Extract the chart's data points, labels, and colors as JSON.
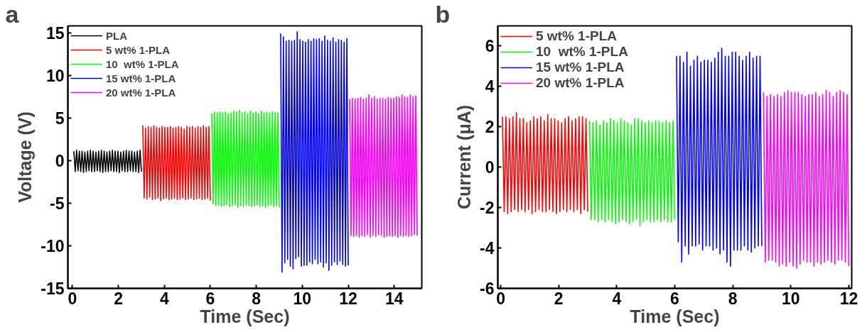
{
  "chart_data": [
    {
      "type": "line",
      "xlabel": "Time (Sec)",
      "ylabel": "Voltage (V)",
      "annotations": [
        "a"
      ],
      "xlim": [
        -0.2,
        15.2
      ],
      "xticks": [
        0,
        2,
        4,
        6,
        8,
        10,
        12,
        14
      ],
      "ylim": [
        -15,
        15.8
      ],
      "yticks": [
        -15,
        -10,
        -5,
        0,
        5,
        10,
        15
      ],
      "legend": "top left",
      "grid": false,
      "marker": "none",
      "line_style": "solid",
      "series": [
        {
          "name": "PLA",
          "color": "#000000",
          "x": [
            0.06,
            0.12,
            0.18,
            0.24,
            0.3,
            0.36,
            0.42,
            0.48,
            0.54,
            0.6,
            0.66,
            0.72,
            0.78,
            0.84,
            0.9,
            0.96,
            1.02,
            1.08,
            1.14,
            1.2,
            1.26,
            1.32,
            1.38,
            1.44,
            1.5,
            1.56,
            1.62,
            1.68,
            1.74,
            1.8,
            1.86,
            1.92,
            1.98,
            2.04,
            2.1,
            2.16,
            2.22,
            2.28,
            2.34,
            2.4,
            2.46,
            2.52,
            2.58,
            2.64,
            2.7,
            2.76,
            2.82,
            2.88,
            2.94,
            3.0
          ],
          "values": [
            1.1,
            -1.3,
            1.2,
            -1.2,
            1.1,
            -1.3,
            1.1,
            -1.4,
            1.0,
            -1.3,
            1.1,
            -1.2,
            1.2,
            -1.3,
            1.1,
            -1.3,
            1.0,
            -1.2,
            1.1,
            -1.3,
            1.2,
            -1.4,
            1.1,
            -1.3,
            1.0,
            -1.3,
            1.1,
            -1.2,
            1.2,
            -1.3,
            1.1,
            -1.3,
            1.1,
            -1.4,
            1.0,
            -1.2,
            1.1,
            -1.3,
            1.2,
            -1.3,
            1.1,
            -1.2,
            1.1,
            -1.3,
            1.0,
            -1.3,
            1.1,
            -1.4,
            1.2,
            -1.3
          ]
        },
        {
          "name": "5 wt% 1-PLA",
          "color": "#ff0000",
          "x": [
            3.06,
            3.12,
            3.18,
            3.24,
            3.3,
            3.36,
            3.42,
            3.48,
            3.54,
            3.6,
            3.66,
            3.72,
            3.78,
            3.84,
            3.9,
            3.96,
            4.02,
            4.08,
            4.14,
            4.2,
            4.26,
            4.32,
            4.38,
            4.44,
            4.5,
            4.56,
            4.62,
            4.68,
            4.74,
            4.8,
            4.86,
            4.92,
            4.98,
            5.04,
            5.1,
            5.16,
            5.22,
            5.28,
            5.34,
            5.4,
            5.46,
            5.52,
            5.58,
            5.64,
            5.7,
            5.76,
            5.82,
            5.88,
            5.94,
            6.0
          ],
          "values": [
            4.1,
            -4.4,
            3.8,
            -4.5,
            4.0,
            -4.3,
            3.9,
            -4.6,
            4.1,
            -4.5,
            3.9,
            -4.4,
            3.8,
            -4.7,
            4.0,
            -4.5,
            3.9,
            -4.4,
            3.9,
            -4.6,
            4.0,
            -4.5,
            3.8,
            -4.4,
            3.9,
            -4.6,
            4.0,
            -4.5,
            3.9,
            -4.4,
            3.7,
            -4.6,
            4.0,
            -4.5,
            3.9,
            -4.4,
            4.0,
            -4.6,
            3.8,
            -4.5,
            4.0,
            -4.4,
            3.9,
            -4.6,
            4.1,
            -4.5,
            3.9,
            -4.4,
            4.0,
            -4.7
          ]
        },
        {
          "name": "10  wt% 1-PLA",
          "color": "#00ff00",
          "x": [
            6.06,
            6.12,
            6.18,
            6.24,
            6.3,
            6.36,
            6.42,
            6.48,
            6.54,
            6.6,
            6.66,
            6.72,
            6.78,
            6.84,
            6.9,
            6.96,
            7.02,
            7.08,
            7.14,
            7.2,
            7.26,
            7.32,
            7.38,
            7.44,
            7.5,
            7.56,
            7.62,
            7.68,
            7.74,
            7.8,
            7.86,
            7.92,
            7.98,
            8.04,
            8.1,
            8.16,
            8.22,
            8.28,
            8.34,
            8.4,
            8.46,
            8.52,
            8.58,
            8.64,
            8.7,
            8.76,
            8.82,
            8.88,
            8.94,
            9.0
          ],
          "values": [
            5.5,
            -5.1,
            5.7,
            -5.3,
            5.6,
            -5.2,
            5.7,
            -5.4,
            5.6,
            -5.3,
            5.7,
            -5.2,
            5.5,
            -5.4,
            5.6,
            -5.3,
            5.8,
            -5.2,
            5.7,
            -5.5,
            5.9,
            -5.3,
            5.6,
            -5.4,
            5.7,
            -5.2,
            5.5,
            -5.3,
            5.8,
            -5.4,
            5.6,
            -5.3,
            5.7,
            -5.2,
            5.5,
            -5.4,
            5.8,
            -5.3,
            5.6,
            -5.5,
            5.7,
            -5.3,
            5.6,
            -5.2,
            5.7,
            -5.4,
            5.6,
            -5.3,
            5.6,
            -5.5
          ]
        },
        {
          "name": "15 wt% 1-PLA",
          "color": "#0000ff",
          "x": [
            9.06,
            9.12,
            9.18,
            9.24,
            9.3,
            9.36,
            9.42,
            9.48,
            9.54,
            9.6,
            9.66,
            9.72,
            9.78,
            9.84,
            9.9,
            9.96,
            10.02,
            10.08,
            10.14,
            10.2,
            10.26,
            10.32,
            10.38,
            10.44,
            10.5,
            10.56,
            10.62,
            10.68,
            10.74,
            10.8,
            10.86,
            10.92,
            10.98,
            11.04,
            11.1,
            11.16,
            11.22,
            11.28,
            11.34,
            11.4,
            11.46,
            11.52,
            11.58,
            11.64,
            11.7,
            11.76,
            11.82,
            11.88,
            11.94,
            12.0
          ],
          "values": [
            14.9,
            -13.1,
            14.5,
            -12.0,
            14.0,
            -11.6,
            14.1,
            -12.4,
            14.0,
            -12.7,
            14.1,
            -11.5,
            15.1,
            -11.3,
            14.2,
            -12.4,
            14.0,
            -12.3,
            13.9,
            -12.3,
            14.2,
            -11.9,
            14.0,
            -12.1,
            14.3,
            -11.6,
            14.2,
            -12.1,
            14.3,
            -11.9,
            14.0,
            -12.5,
            14.6,
            -12.0,
            14.1,
            -12.9,
            14.0,
            -12.3,
            14.4,
            -11.9,
            13.9,
            -12.2,
            14.2,
            -11.8,
            14.1,
            -12.2,
            13.9,
            -12.4,
            14.3,
            -12.3
          ]
        },
        {
          "name": "20 wt% 1-PLA",
          "color": "#ff00ff",
          "x": [
            12.06,
            12.12,
            12.18,
            12.24,
            12.3,
            12.36,
            12.42,
            12.48,
            12.54,
            12.6,
            12.66,
            12.72,
            12.78,
            12.84,
            12.9,
            12.96,
            13.02,
            13.08,
            13.14,
            13.2,
            13.26,
            13.32,
            13.38,
            13.44,
            13.5,
            13.56,
            13.62,
            13.68,
            13.74,
            13.8,
            13.86,
            13.92,
            13.98,
            14.04,
            14.1,
            14.16,
            14.22,
            14.28,
            14.34,
            14.4,
            14.46,
            14.52,
            14.58,
            14.64,
            14.7,
            14.76,
            14.82,
            14.88,
            14.94,
            15.0
          ],
          "values": [
            7.2,
            -8.8,
            7.3,
            -8.9,
            7.2,
            -8.8,
            7.3,
            -9.0,
            7.4,
            -8.8,
            7.2,
            -8.9,
            7.3,
            -8.7,
            7.7,
            -9.0,
            7.3,
            -8.8,
            7.5,
            -8.9,
            7.2,
            -8.7,
            7.3,
            -8.8,
            7.3,
            -9.0,
            7.2,
            -8.9,
            7.4,
            -8.8,
            7.3,
            -8.9,
            7.3,
            -8.8,
            7.5,
            -9.0,
            7.4,
            -8.8,
            7.7,
            -8.9,
            7.5,
            -8.8,
            7.4,
            -8.9,
            7.7,
            -8.8,
            7.5,
            -8.7,
            7.6,
            -8.8
          ]
        }
      ]
    },
    {
      "type": "line",
      "xlabel": "Time (Sec)",
      "ylabel": "Current (μA)",
      "annotations": [
        "b"
      ],
      "xlim": [
        -0.1,
        12.1
      ],
      "xticks": [
        0,
        2,
        4,
        6,
        8,
        10,
        12
      ],
      "ylim": [
        -6,
        7
      ],
      "yticks": [
        -6,
        -4,
        -2,
        0,
        2,
        4,
        6
      ],
      "legend": "top left",
      "grid": false,
      "marker": "none",
      "line_style": "solid",
      "series": [
        {
          "name": "5 wt% 1-PLA",
          "color": "#ff0000",
          "x": [
            0.06,
            0.12,
            0.18,
            0.24,
            0.3,
            0.36,
            0.42,
            0.48,
            0.54,
            0.6,
            0.66,
            0.72,
            0.78,
            0.84,
            0.9,
            0.96,
            1.02,
            1.08,
            1.14,
            1.2,
            1.26,
            1.32,
            1.38,
            1.44,
            1.5,
            1.56,
            1.62,
            1.68,
            1.74,
            1.8,
            1.86,
            1.92,
            1.98,
            2.04,
            2.1,
            2.16,
            2.22,
            2.28,
            2.34,
            2.4,
            2.46,
            2.52,
            2.58,
            2.64,
            2.7,
            2.76,
            2.82,
            2.88,
            2.94,
            3.0
          ],
          "values": [
            2.5,
            -2.2,
            2.5,
            -2.3,
            2.4,
            -2.2,
            2.5,
            -2.1,
            2.7,
            -2.2,
            2.4,
            -2.1,
            2.4,
            -2.2,
            2.2,
            -2.1,
            2.3,
            -2.3,
            2.5,
            -2.2,
            2.4,
            -2.1,
            2.5,
            -2.2,
            2.3,
            -2.2,
            2.6,
            -2.1,
            2.4,
            -2.2,
            2.4,
            -2.3,
            2.3,
            -2.2,
            2.2,
            -2.1,
            2.4,
            -2.2,
            2.5,
            -2.1,
            2.3,
            -2.2,
            2.4,
            -2.1,
            2.5,
            -2.3,
            2.5,
            -2.1,
            2.4,
            -2.2
          ]
        },
        {
          "name": "10  wt% 1-PLA",
          "color": "#00ff00",
          "x": [
            3.06,
            3.12,
            3.18,
            3.24,
            3.3,
            3.36,
            3.42,
            3.48,
            3.54,
            3.6,
            3.66,
            3.72,
            3.78,
            3.84,
            3.9,
            3.96,
            4.02,
            4.08,
            4.14,
            4.2,
            4.26,
            4.32,
            4.38,
            4.44,
            4.5,
            4.56,
            4.62,
            4.68,
            4.74,
            4.8,
            4.86,
            4.92,
            4.98,
            5.04,
            5.1,
            5.16,
            5.22,
            5.28,
            5.34,
            5.4,
            5.46,
            5.52,
            5.58,
            5.64,
            5.7,
            5.76,
            5.82,
            5.88,
            5.94,
            6.0
          ],
          "values": [
            2.3,
            -2.6,
            2.2,
            -2.6,
            2.3,
            -2.7,
            2.1,
            -2.6,
            2.3,
            -2.7,
            2.2,
            -2.6,
            2.4,
            -2.7,
            2.3,
            -2.8,
            2.2,
            -2.7,
            2.4,
            -2.6,
            2.3,
            -2.7,
            2.2,
            -2.8,
            2.1,
            -2.7,
            2.4,
            -2.6,
            2.4,
            -2.9,
            2.3,
            -2.7,
            2.2,
            -2.6,
            2.3,
            -2.7,
            2.2,
            -2.7,
            2.3,
            -2.6,
            2.3,
            -2.7,
            2.2,
            -2.6,
            2.3,
            -2.7,
            2.2,
            -2.7,
            2.3,
            -2.6
          ]
        },
        {
          "name": "15 wt% 1-PLA",
          "color": "#0000ff",
          "x": [
            6.06,
            6.12,
            6.18,
            6.24,
            6.3,
            6.36,
            6.42,
            6.48,
            6.54,
            6.6,
            6.66,
            6.72,
            6.78,
            6.84,
            6.9,
            6.96,
            7.02,
            7.08,
            7.14,
            7.2,
            7.26,
            7.32,
            7.38,
            7.44,
            7.5,
            7.56,
            7.62,
            7.68,
            7.74,
            7.8,
            7.86,
            7.92,
            7.98,
            8.04,
            8.1,
            8.16,
            8.22,
            8.28,
            8.34,
            8.4,
            8.46,
            8.52,
            8.58,
            8.64,
            8.7,
            8.76,
            8.82,
            8.88,
            8.94,
            9.0
          ],
          "values": [
            5.5,
            -3.7,
            5.5,
            -4.7,
            5.2,
            -3.9,
            5.7,
            -4.3,
            5.0,
            -3.9,
            5.3,
            -3.9,
            5.5,
            -3.8,
            5.2,
            -4.1,
            5.3,
            -3.9,
            5.3,
            -3.9,
            5.2,
            -4.1,
            5.4,
            -4.0,
            5.7,
            -4.3,
            5.9,
            -4.1,
            5.5,
            -4.7,
            5.5,
            -4.9,
            5.7,
            -4.1,
            5.7,
            -4.1,
            5.5,
            -4.1,
            5.3,
            -3.9,
            5.5,
            -4.1,
            5.7,
            -4.2,
            5.4,
            -4.0,
            5.5,
            -3.9,
            5.5,
            -3.9
          ]
        },
        {
          "name": "20 wt% 1-PLA",
          "color": "#ff00ff",
          "x": [
            9.06,
            9.12,
            9.18,
            9.24,
            9.3,
            9.36,
            9.42,
            9.48,
            9.54,
            9.6,
            9.66,
            9.72,
            9.78,
            9.84,
            9.9,
            9.96,
            10.02,
            10.08,
            10.14,
            10.2,
            10.26,
            10.32,
            10.38,
            10.44,
            10.5,
            10.56,
            10.62,
            10.68,
            10.74,
            10.8,
            10.86,
            10.92,
            10.98,
            11.04,
            11.1,
            11.16,
            11.22,
            11.28,
            11.34,
            11.4,
            11.46,
            11.52,
            11.58,
            11.64,
            11.7,
            11.76,
            11.82,
            11.88,
            11.94,
            12.0
          ],
          "values": [
            3.7,
            -4.7,
            3.5,
            -4.6,
            3.6,
            -4.6,
            3.5,
            -4.7,
            3.6,
            -4.9,
            3.5,
            -4.8,
            3.7,
            -4.9,
            3.8,
            -4.7,
            3.7,
            -4.9,
            3.7,
            -5.0,
            3.7,
            -4.8,
            3.6,
            -4.6,
            3.5,
            -4.7,
            3.6,
            -4.7,
            3.6,
            -4.9,
            3.7,
            -4.7,
            3.5,
            -4.8,
            3.6,
            -4.7,
            3.8,
            -4.6,
            3.7,
            -4.7,
            3.5,
            -4.8,
            3.7,
            -4.6,
            3.8,
            -4.6,
            3.7,
            -4.7,
            3.6,
            -4.9
          ]
        }
      ]
    }
  ]
}
